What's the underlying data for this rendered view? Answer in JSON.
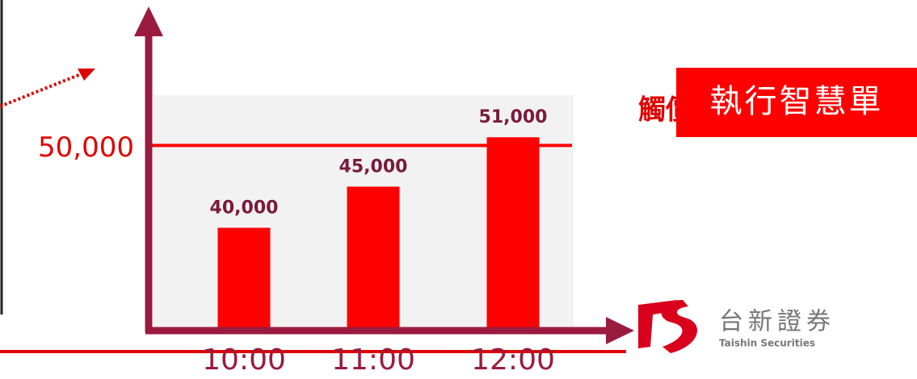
{
  "chart_data": {
    "type": "bar",
    "categories": [
      "10:00",
      "11:00",
      "12:00"
    ],
    "values": [
      40000,
      45000,
      51000
    ],
    "value_labels": [
      "40,000",
      "45,000",
      "51,000"
    ],
    "color": "#ff0000",
    "ylim": [
      27500,
      62000
    ],
    "threshold": {
      "value": 50000,
      "label": "50,000"
    },
    "trigger_label": "觸價",
    "action_label": "執行智慧單",
    "logo": {
      "name": "台新證券",
      "english": "Taishin Securities"
    }
  }
}
